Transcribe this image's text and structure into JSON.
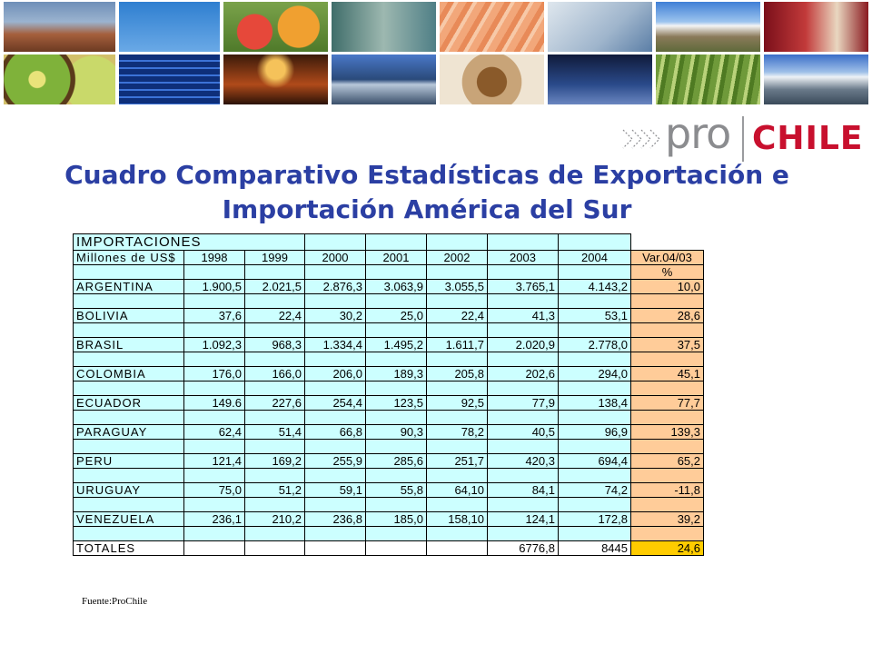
{
  "title": {
    "line1": "Cuadro Comparativo Estadísticas de Exportación e",
    "line2": "Importación América del Sur"
  },
  "logo": {
    "pro": "pro",
    "chile": "CHILE",
    "chile_color": "#c8102e"
  },
  "colors": {
    "title": "#2b3fa3",
    "cell_cyan": "#ccffff",
    "cell_peach": "#ffcc99",
    "cell_gold": "#ffcc00"
  },
  "table": {
    "section": "IMPORTACIONES",
    "header": [
      "Millones de US$",
      "1998",
      "1999",
      "2000",
      "2001",
      "2002",
      "2003",
      "2004",
      "Var.04/03"
    ],
    "unit_row_last": "%",
    "rows": [
      [
        "ARGENTINA",
        "1.900,5",
        "2.021,5",
        "2.876,3",
        "3.063,9",
        "3.055,5",
        "3.765,1",
        "4.143,2",
        "10,0"
      ],
      [
        "BOLIVIA",
        "37,6",
        "22,4",
        "30,2",
        "25,0",
        "22,4",
        "41,3",
        "53,1",
        "28,6"
      ],
      [
        "BRASIL",
        "1.092,3",
        "968,3",
        "1.334,4",
        "1.495,2",
        "1.611,7",
        "2.020,9",
        "2.778,0",
        "37,5"
      ],
      [
        "COLOMBIA",
        "176,0",
        "166,0",
        "206,0",
        "189,3",
        "205,8",
        "202,6",
        "294,0",
        "45,1"
      ],
      [
        "ECUADOR",
        "149.6",
        "227,6",
        "254,4",
        "123,5",
        "92,5",
        "77,9",
        "138,4",
        "77,7"
      ],
      [
        "PARAGUAY",
        "62,4",
        "51,4",
        "66,8",
        "90,3",
        "78,2",
        "40,5",
        "96,9",
        "139,3"
      ],
      [
        "PERU",
        "121,4",
        "169,2",
        "255,9",
        "285,6",
        "251,7",
        "420,3",
        "694,4",
        "65,2"
      ],
      [
        "URUGUAY",
        "75,0",
        "51,2",
        "59,1",
        "55,8",
        "64,10",
        "84,1",
        "74,2",
        "-11,8"
      ],
      [
        "VENEZUELA",
        "236,1",
        "210,2",
        "236,8",
        "185,0",
        "158,10",
        "124,1",
        "172,8",
        "39,2"
      ]
    ],
    "totals": [
      "TOTALES",
      "",
      "",
      "",
      "",
      "",
      "6776,8",
      "8445",
      "24,6"
    ]
  },
  "source": "Fuente:ProChile"
}
